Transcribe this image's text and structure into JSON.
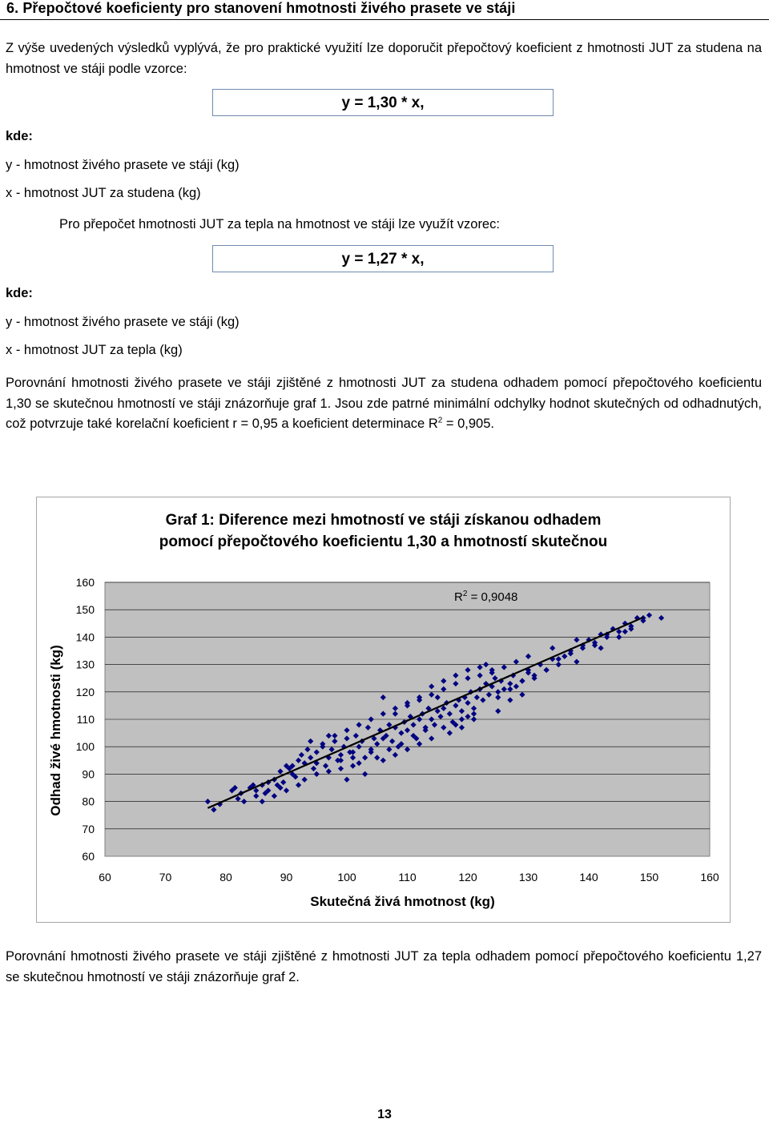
{
  "heading": "6. Přepočtové koeficienty pro stanovení hmotnosti živého prasete ve stáji",
  "intro": "Z výše uvedených výsledků vyplývá, že pro praktické využití lze doporučit přepočtový koeficient z hmotnosti JUT za studena na hmotnost ve stáji podle vzorce:",
  "formula1": "y = 1,30 * x,",
  "where1": "kde:",
  "y_def1": "y - hmotnost živého prasete ve stáji (kg)",
  "x_def1": "x - hmotnost JUT za studena (kg)",
  "note2": "Pro přepočet hmotnosti JUT za tepla na hmotnost ve stáji lze využít vzorec:",
  "formula2": "y = 1,27 * x,",
  "where2": "kde:",
  "y_def2": "y - hmotnost živého prasete ve stáji (kg)",
  "x_def2": "x - hmotnost JUT za tepla (kg)",
  "comparison1_part1": "Porovnání hmotnosti  živého prasete ve stáji zjištěné z hmotnosti JUT za studena odhadem pomocí přepočtového koeficientu 1,30 se skutečnou hmotností ve stáji znázorňuje graf 1. Jsou zde patrné minimální odchylky hodnot skutečných od odhadnutých, což potvrzuje také korelační koeficient r = 0,95 a koeficient determinace R",
  "comparison1_sup": "2",
  "comparison1_part2": " = 0,905.",
  "comparison2": "Porovnání hmotnosti  živého prasete ve stáji zjištěné z hmotnosti JUT za tepla odhadem pomocí přepočtového koeficientu 1,27 se skutečnou hmotností ve stáji znázorňuje graf 2.",
  "page_number": "13",
  "chart_data": {
    "type": "scatter",
    "title_line1": "Graf 1: Diference mezi hmotností ve stáji získanou odhadem",
    "title_line2": "pomocí přepočtového koeficientu 1,30 a hmotností skutečnou",
    "xlabel": "Skutečná živá hmotnost (kg)",
    "ylabel": "Odhad živé hmotnosti (kg)",
    "xlim": [
      60,
      160
    ],
    "ylim": [
      60,
      160
    ],
    "xticks": [
      "60",
      "70",
      "80",
      "90",
      "100",
      "110",
      "120",
      "130",
      "140",
      "150",
      "160"
    ],
    "yticks": [
      "60",
      "70",
      "80",
      "90",
      "100",
      "110",
      "120",
      "130",
      "140",
      "150",
      "160"
    ],
    "grid": true,
    "r2_label_prefix": "R",
    "r2_label_sup": "2",
    "r2_label_value": " = 0,9048",
    "marker_color": "#000080",
    "plot_background": "#c0c0c0",
    "trendline": {
      "x": [
        77,
        149
      ],
      "y": [
        77.6,
        147.2
      ]
    },
    "points": [
      [
        77,
        80
      ],
      [
        78,
        77
      ],
      [
        81,
        84
      ],
      [
        81.5,
        85
      ],
      [
        82.5,
        83
      ],
      [
        82,
        81
      ],
      [
        84,
        85
      ],
      [
        84.5,
        86
      ],
      [
        85,
        84
      ],
      [
        86,
        86
      ],
      [
        86.5,
        83
      ],
      [
        87,
        87
      ],
      [
        88,
        88
      ],
      [
        88.5,
        86
      ],
      [
        89,
        91
      ],
      [
        89.5,
        87
      ],
      [
        90,
        93
      ],
      [
        90.5,
        92
      ],
      [
        91,
        93
      ],
      [
        91.5,
        89
      ],
      [
        92,
        95
      ],
      [
        92.5,
        97
      ],
      [
        93,
        94
      ],
      [
        93.5,
        99
      ],
      [
        94,
        96
      ],
      [
        94.5,
        92
      ],
      [
        95,
        98
      ],
      [
        96,
        101
      ],
      [
        96.5,
        93
      ],
      [
        97,
        96
      ],
      [
        97.5,
        99
      ],
      [
        98,
        102
      ],
      [
        98.5,
        95
      ],
      [
        99,
        97
      ],
      [
        99.5,
        100
      ],
      [
        100,
        103
      ],
      [
        100.5,
        98
      ],
      [
        101,
        96
      ],
      [
        101.5,
        104
      ],
      [
        102,
        100
      ],
      [
        102.5,
        102
      ],
      [
        103,
        96
      ],
      [
        103.5,
        107
      ],
      [
        104,
        99
      ],
      [
        104.5,
        103
      ],
      [
        105,
        101
      ],
      [
        105.5,
        106
      ],
      [
        106,
        103
      ],
      [
        106.5,
        104
      ],
      [
        107,
        108
      ],
      [
        107.5,
        102
      ],
      [
        108,
        107
      ],
      [
        108.5,
        100
      ],
      [
        109,
        105
      ],
      [
        109.5,
        109
      ],
      [
        110,
        106
      ],
      [
        110.5,
        111
      ],
      [
        111,
        108
      ],
      [
        111.5,
        103
      ],
      [
        112,
        110
      ],
      [
        112.5,
        112
      ],
      [
        113,
        107
      ],
      [
        113.5,
        114
      ],
      [
        114,
        110
      ],
      [
        114.5,
        108
      ],
      [
        115,
        113
      ],
      [
        115.5,
        111
      ],
      [
        116,
        114
      ],
      [
        116.5,
        116
      ],
      [
        117,
        112
      ],
      [
        117.5,
        109
      ],
      [
        118,
        115
      ],
      [
        118.5,
        117
      ],
      [
        119,
        113
      ],
      [
        119.5,
        118
      ],
      [
        120,
        116
      ],
      [
        120.5,
        120
      ],
      [
        121,
        114
      ],
      [
        121.5,
        118
      ],
      [
        122,
        121
      ],
      [
        122.5,
        117
      ],
      [
        123,
        123
      ],
      [
        123.5,
        119
      ],
      [
        124,
        122
      ],
      [
        124.5,
        125
      ],
      [
        125,
        120
      ],
      [
        125.5,
        124
      ],
      [
        126,
        121
      ],
      [
        127,
        123
      ],
      [
        127.5,
        126
      ],
      [
        128,
        122
      ],
      [
        129,
        124
      ],
      [
        130,
        127
      ],
      [
        131,
        125
      ],
      [
        132,
        130
      ],
      [
        133,
        128
      ],
      [
        134,
        132
      ],
      [
        135,
        130
      ],
      [
        136,
        133
      ],
      [
        137,
        135
      ],
      [
        138,
        131
      ],
      [
        139,
        137
      ],
      [
        140,
        139
      ],
      [
        141,
        137
      ],
      [
        142,
        141
      ],
      [
        143,
        140
      ],
      [
        144,
        143
      ],
      [
        145,
        142
      ],
      [
        146,
        145
      ],
      [
        147,
        144
      ],
      [
        148,
        147
      ],
      [
        149,
        146
      ],
      [
        86,
        80
      ],
      [
        88,
        82
      ],
      [
        90,
        84
      ],
      [
        92,
        86
      ],
      [
        95,
        94
      ],
      [
        97,
        104
      ],
      [
        99,
        95
      ],
      [
        101,
        93
      ],
      [
        103,
        90
      ],
      [
        105,
        96
      ],
      [
        107,
        99
      ],
      [
        109,
        101
      ],
      [
        111,
        104
      ],
      [
        113,
        106
      ],
      [
        115,
        118
      ],
      [
        117,
        105
      ],
      [
        119,
        107
      ],
      [
        121,
        110
      ],
      [
        123,
        130
      ],
      [
        125,
        113
      ],
      [
        127,
        117
      ],
      [
        129,
        119
      ],
      [
        95,
        90
      ],
      [
        100,
        88
      ],
      [
        102,
        94
      ],
      [
        104,
        98
      ],
      [
        106,
        118
      ],
      [
        108,
        112
      ],
      [
        110,
        115
      ],
      [
        112,
        117
      ],
      [
        114,
        119
      ],
      [
        116,
        121
      ],
      [
        118,
        123
      ],
      [
        120,
        125
      ],
      [
        122,
        126
      ],
      [
        124,
        128
      ],
      [
        126,
        129
      ],
      [
        128,
        131
      ],
      [
        130,
        133
      ],
      [
        119,
        110
      ],
      [
        121,
        112
      ],
      [
        97,
        91
      ],
      [
        99,
        92
      ],
      [
        101,
        98
      ],
      [
        106,
        95
      ],
      [
        108,
        97
      ],
      [
        110,
        99
      ],
      [
        112,
        101
      ],
      [
        114,
        103
      ],
      [
        116,
        107
      ],
      [
        118,
        108
      ],
      [
        120,
        111
      ],
      [
        94,
        102
      ],
      [
        96,
        100
      ],
      [
        98,
        104
      ],
      [
        100,
        106
      ],
      [
        102,
        108
      ],
      [
        104,
        110
      ],
      [
        106,
        112
      ],
      [
        108,
        114
      ],
      [
        110,
        116
      ],
      [
        112,
        118
      ],
      [
        114,
        122
      ],
      [
        116,
        124
      ],
      [
        118,
        126
      ],
      [
        120,
        128
      ],
      [
        122,
        129
      ],
      [
        124,
        127
      ],
      [
        93,
        88
      ],
      [
        91,
        90
      ],
      [
        89,
        85
      ],
      [
        87,
        84
      ],
      [
        85,
        82
      ],
      [
        83,
        80
      ],
      [
        79,
        79
      ],
      [
        125,
        118
      ],
      [
        127,
        121
      ],
      [
        129,
        124
      ],
      [
        131,
        126
      ],
      [
        133,
        128
      ],
      [
        135,
        132
      ],
      [
        137,
        134
      ],
      [
        139,
        136
      ],
      [
        141,
        138
      ],
      [
        143,
        141
      ],
      [
        145,
        140
      ],
      [
        147,
        143
      ],
      [
        149,
        147
      ],
      [
        150,
        148
      ],
      [
        152,
        147
      ],
      [
        146,
        142
      ],
      [
        142,
        136
      ],
      [
        138,
        139
      ],
      [
        134,
        136
      ],
      [
        130,
        128
      ]
    ]
  }
}
